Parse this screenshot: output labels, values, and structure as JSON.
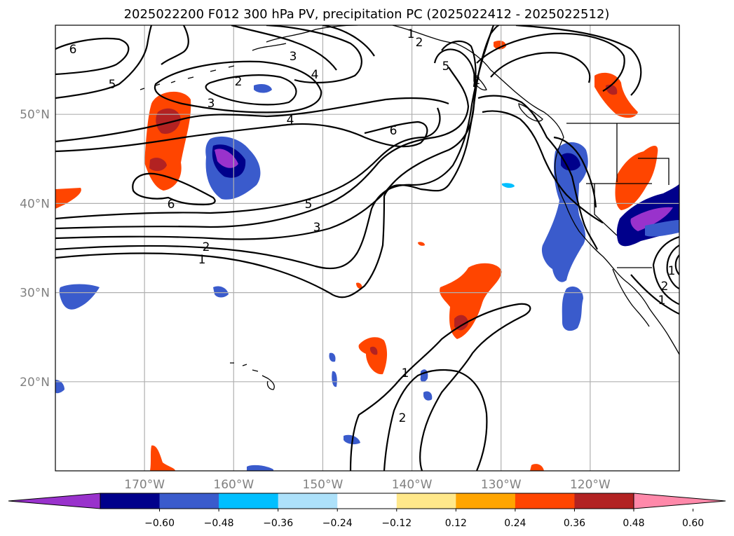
{
  "title": "2025022200 F012 300 hPa PV, precipitation PC (2025022412 - 2025022512)",
  "map": {
    "lon_range": [
      -180,
      -110
    ],
    "lat_range": [
      10,
      60
    ],
    "lon_ticks": [
      {
        "value": -170,
        "label": "170°W"
      },
      {
        "value": -160,
        "label": "160°W"
      },
      {
        "value": -150,
        "label": "150°W"
      },
      {
        "value": -140,
        "label": "140°W"
      },
      {
        "value": -130,
        "label": "130°W"
      },
      {
        "value": -120,
        "label": "120°W"
      }
    ],
    "lat_ticks": [
      {
        "value": 20,
        "label": "20°N"
      },
      {
        "value": 30,
        "label": "30°N"
      },
      {
        "value": 40,
        "label": "40°N"
      },
      {
        "value": 50,
        "label": "50°N"
      }
    ],
    "gridlines": true,
    "contour_variable": "300 hPa PV",
    "contour_labels": [
      "6",
      "5",
      "2",
      "3",
      "4",
      "4",
      "6",
      "6",
      "5",
      "3",
      "2",
      "1",
      "1",
      "2",
      "5",
      "1",
      "2",
      "3",
      "2",
      "1",
      "1",
      "2"
    ],
    "shaded_variable": "precipitation PC"
  },
  "colorbar": {
    "ticks": [
      "−0.60",
      "−0.48",
      "−0.36",
      "−0.24",
      "−0.12",
      "0.12",
      "0.24",
      "0.36",
      "0.48",
      "0.60"
    ],
    "colors": [
      "#9932CC",
      "#00008B",
      "#3A5BCC",
      "#00BFFF",
      "#ADE1FA",
      "#FFFFFF",
      "#FFE88A",
      "#FFA500",
      "#FF4500",
      "#B22222",
      "#FF89AA"
    ]
  }
}
